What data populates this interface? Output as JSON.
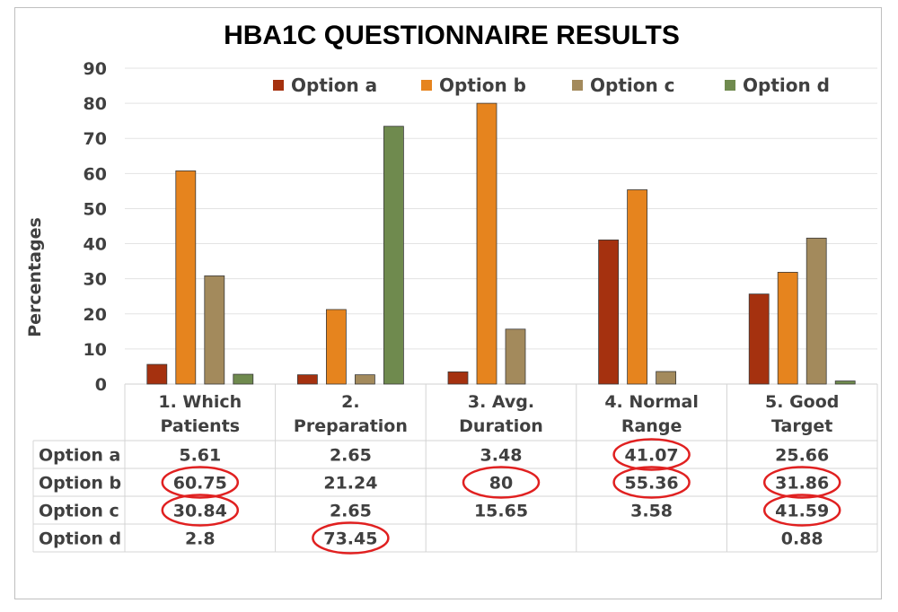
{
  "chart_data": {
    "type": "bar",
    "title": "HBA1C QUESTIONNAIRE RESULTS",
    "xlabel": "",
    "ylabel": "Percentages",
    "ylim": [
      0,
      90
    ],
    "yticks": [
      "0",
      "10",
      "20",
      "30",
      "40",
      "50",
      "60",
      "70",
      "80",
      "90"
    ],
    "grid": true,
    "legend_position": "top-right",
    "categories": [
      [
        "1. Which",
        "Patients"
      ],
      [
        "2.",
        "Preparation"
      ],
      [
        "3. Avg.",
        "Duration"
      ],
      [
        "4. Normal",
        "Range"
      ],
      [
        "5. Good",
        "Target"
      ]
    ],
    "series": [
      {
        "name": "Option a",
        "color": "#a5310f",
        "values": [
          5.61,
          2.65,
          3.48,
          41.07,
          25.66
        ],
        "labels": [
          "5.61",
          "2.65",
          "3.48",
          "41.07",
          "25.66"
        ]
      },
      {
        "name": "Option b",
        "color": "#e6841e",
        "values": [
          60.75,
          21.24,
          80,
          55.36,
          31.86
        ],
        "labels": [
          "60.75",
          "21.24",
          "80",
          "55.36",
          "31.86"
        ]
      },
      {
        "name": "Option c",
        "color": "#a38a5c",
        "values": [
          30.84,
          2.65,
          15.65,
          3.58,
          41.59
        ],
        "labels": [
          "30.84",
          "2.65",
          "15.65",
          "3.58",
          "41.59"
        ]
      },
      {
        "name": "Option d",
        "color": "#6f8a4e",
        "values": [
          2.8,
          73.45,
          null,
          null,
          0.88
        ],
        "labels": [
          "2.8",
          "73.45",
          "",
          "",
          "0.88"
        ]
      }
    ],
    "highlighted_cells": [
      [
        1,
        0
      ],
      [
        2,
        0
      ],
      [
        3,
        1
      ],
      [
        0,
        3
      ],
      [
        1,
        3
      ],
      [
        1,
        2
      ],
      [
        1,
        4
      ],
      [
        2,
        4
      ]
    ],
    "highlight_color": "#e02020"
  }
}
